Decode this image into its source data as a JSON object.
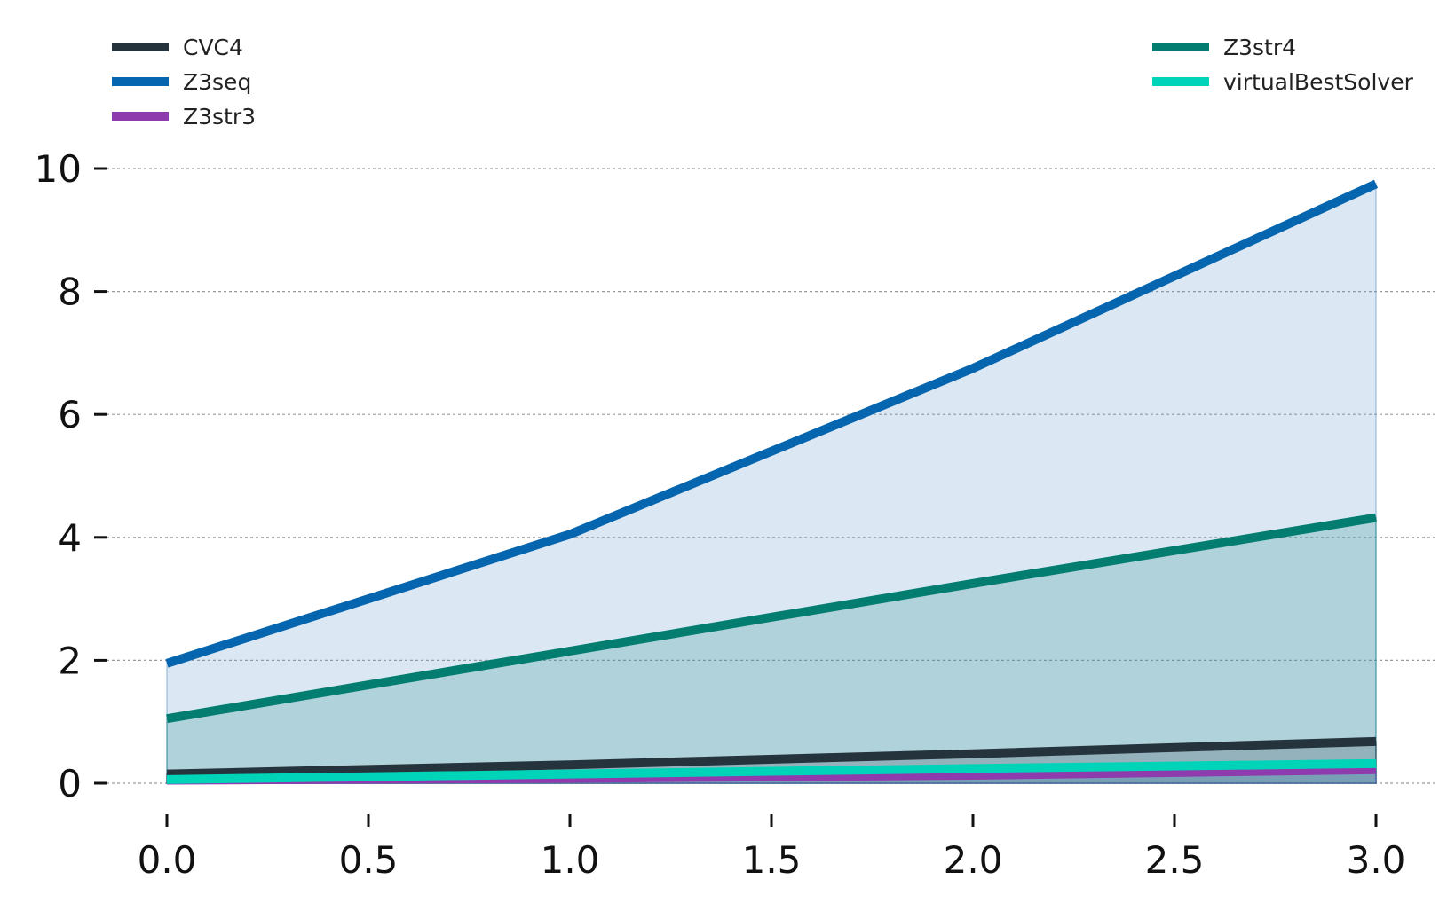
{
  "chart_data": {
    "type": "area",
    "title": "",
    "xlabel": "",
    "ylabel": "",
    "x": [
      0,
      1,
      2,
      3
    ],
    "xlim": [
      0,
      3
    ],
    "ylim": [
      0,
      10
    ],
    "x_ticks": [
      "0.0",
      "0.5",
      "1.0",
      "1.5",
      "2.0",
      "2.5",
      "3.0"
    ],
    "y_ticks": [
      "0",
      "2",
      "4",
      "6",
      "8",
      "10"
    ],
    "grid": "horizontal dashed",
    "series": [
      {
        "name": "CVC4",
        "values": [
          0.15,
          0.3,
          0.48,
          0.68
        ],
        "color": "#25333d",
        "fill": "#25333d",
        "fill_opacity": 0.2
      },
      {
        "name": "Z3seq",
        "values": [
          1.95,
          4.05,
          6.75,
          9.75
        ],
        "color": "#0565ae",
        "fill": "#5b95c9",
        "fill_opacity": 0.22
      },
      {
        "name": "Z3str3",
        "values": [
          0.05,
          0.08,
          0.13,
          0.22
        ],
        "color": "#8e3bae",
        "fill": "#8e3bae",
        "fill_opacity": 0.2
      },
      {
        "name": "Z3str4",
        "values": [
          1.05,
          2.15,
          3.25,
          4.32
        ],
        "color": "#047d71",
        "fill": "#2b8e8e",
        "fill_opacity": 0.24
      },
      {
        "name": "virtualBestSolver",
        "values": [
          0.06,
          0.15,
          0.24,
          0.32
        ],
        "color": "#00d4b8",
        "fill": "#00d4b8",
        "fill_opacity": 0.2
      }
    ],
    "legend": {
      "left_column": [
        "CVC4",
        "Z3seq",
        "Z3str3"
      ],
      "right_column": [
        "Z3str4",
        "virtualBestSolver"
      ],
      "placement": "top"
    }
  }
}
